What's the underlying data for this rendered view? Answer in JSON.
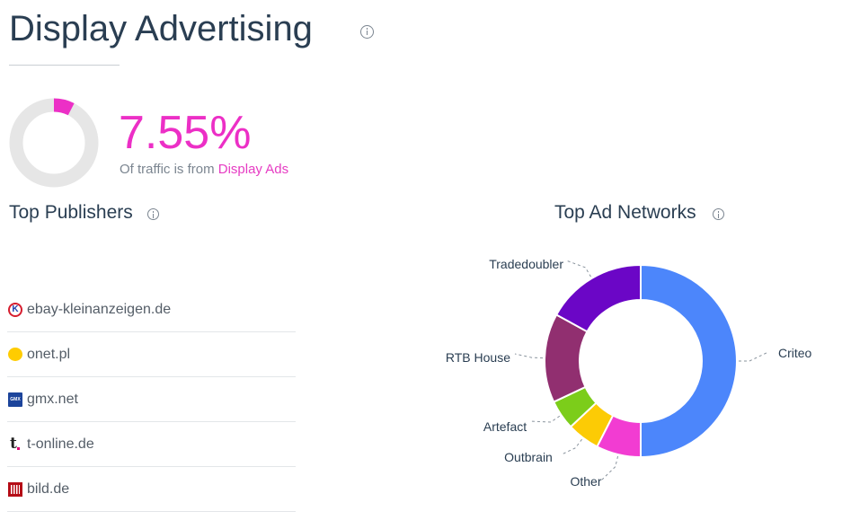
{
  "header": {
    "title": "Display Advertising",
    "info_icon": "info-icon"
  },
  "summary": {
    "value": "7.55%",
    "share": 0.0755,
    "caption_prefix": "Of traffic is from ",
    "caption_link": "Display Ads",
    "accent_color": "#ec2fc6",
    "track_color": "#e6e6e6"
  },
  "publishers": {
    "title": "Top Publishers",
    "info_icon": "info-icon",
    "items": [
      {
        "name": "ebay-kleinanzeigen.de",
        "icon": "ebay-kleinanzeigen-favicon"
      },
      {
        "name": "onet.pl",
        "icon": "onet-favicon"
      },
      {
        "name": "gmx.net",
        "icon": "gmx-favicon"
      },
      {
        "name": "t-online.de",
        "icon": "t-online-favicon"
      },
      {
        "name": "bild.de",
        "icon": "bild-favicon"
      }
    ]
  },
  "networks": {
    "title": "Top Ad Networks",
    "info_icon": "info-icon"
  },
  "chart_data": {
    "type": "pie",
    "title": "Top Ad Networks",
    "donut": true,
    "legend": "none",
    "slices": [
      {
        "name": "Criteo",
        "value": 50,
        "color": "#4c86fb"
      },
      {
        "name": "Other",
        "value": 7.5,
        "color": "#f23cd2"
      },
      {
        "name": "Outbrain",
        "value": 5.5,
        "color": "#fccb05"
      },
      {
        "name": "Artefact",
        "value": 5,
        "color": "#7ccd1a"
      },
      {
        "name": "RTB House",
        "value": 15,
        "color": "#912f70"
      },
      {
        "name": "Tradedoubler",
        "value": 17,
        "color": "#6b06c6"
      }
    ],
    "label_colors": {
      "default": "#2a3e52",
      "Other": "#3ba2d3"
    }
  }
}
